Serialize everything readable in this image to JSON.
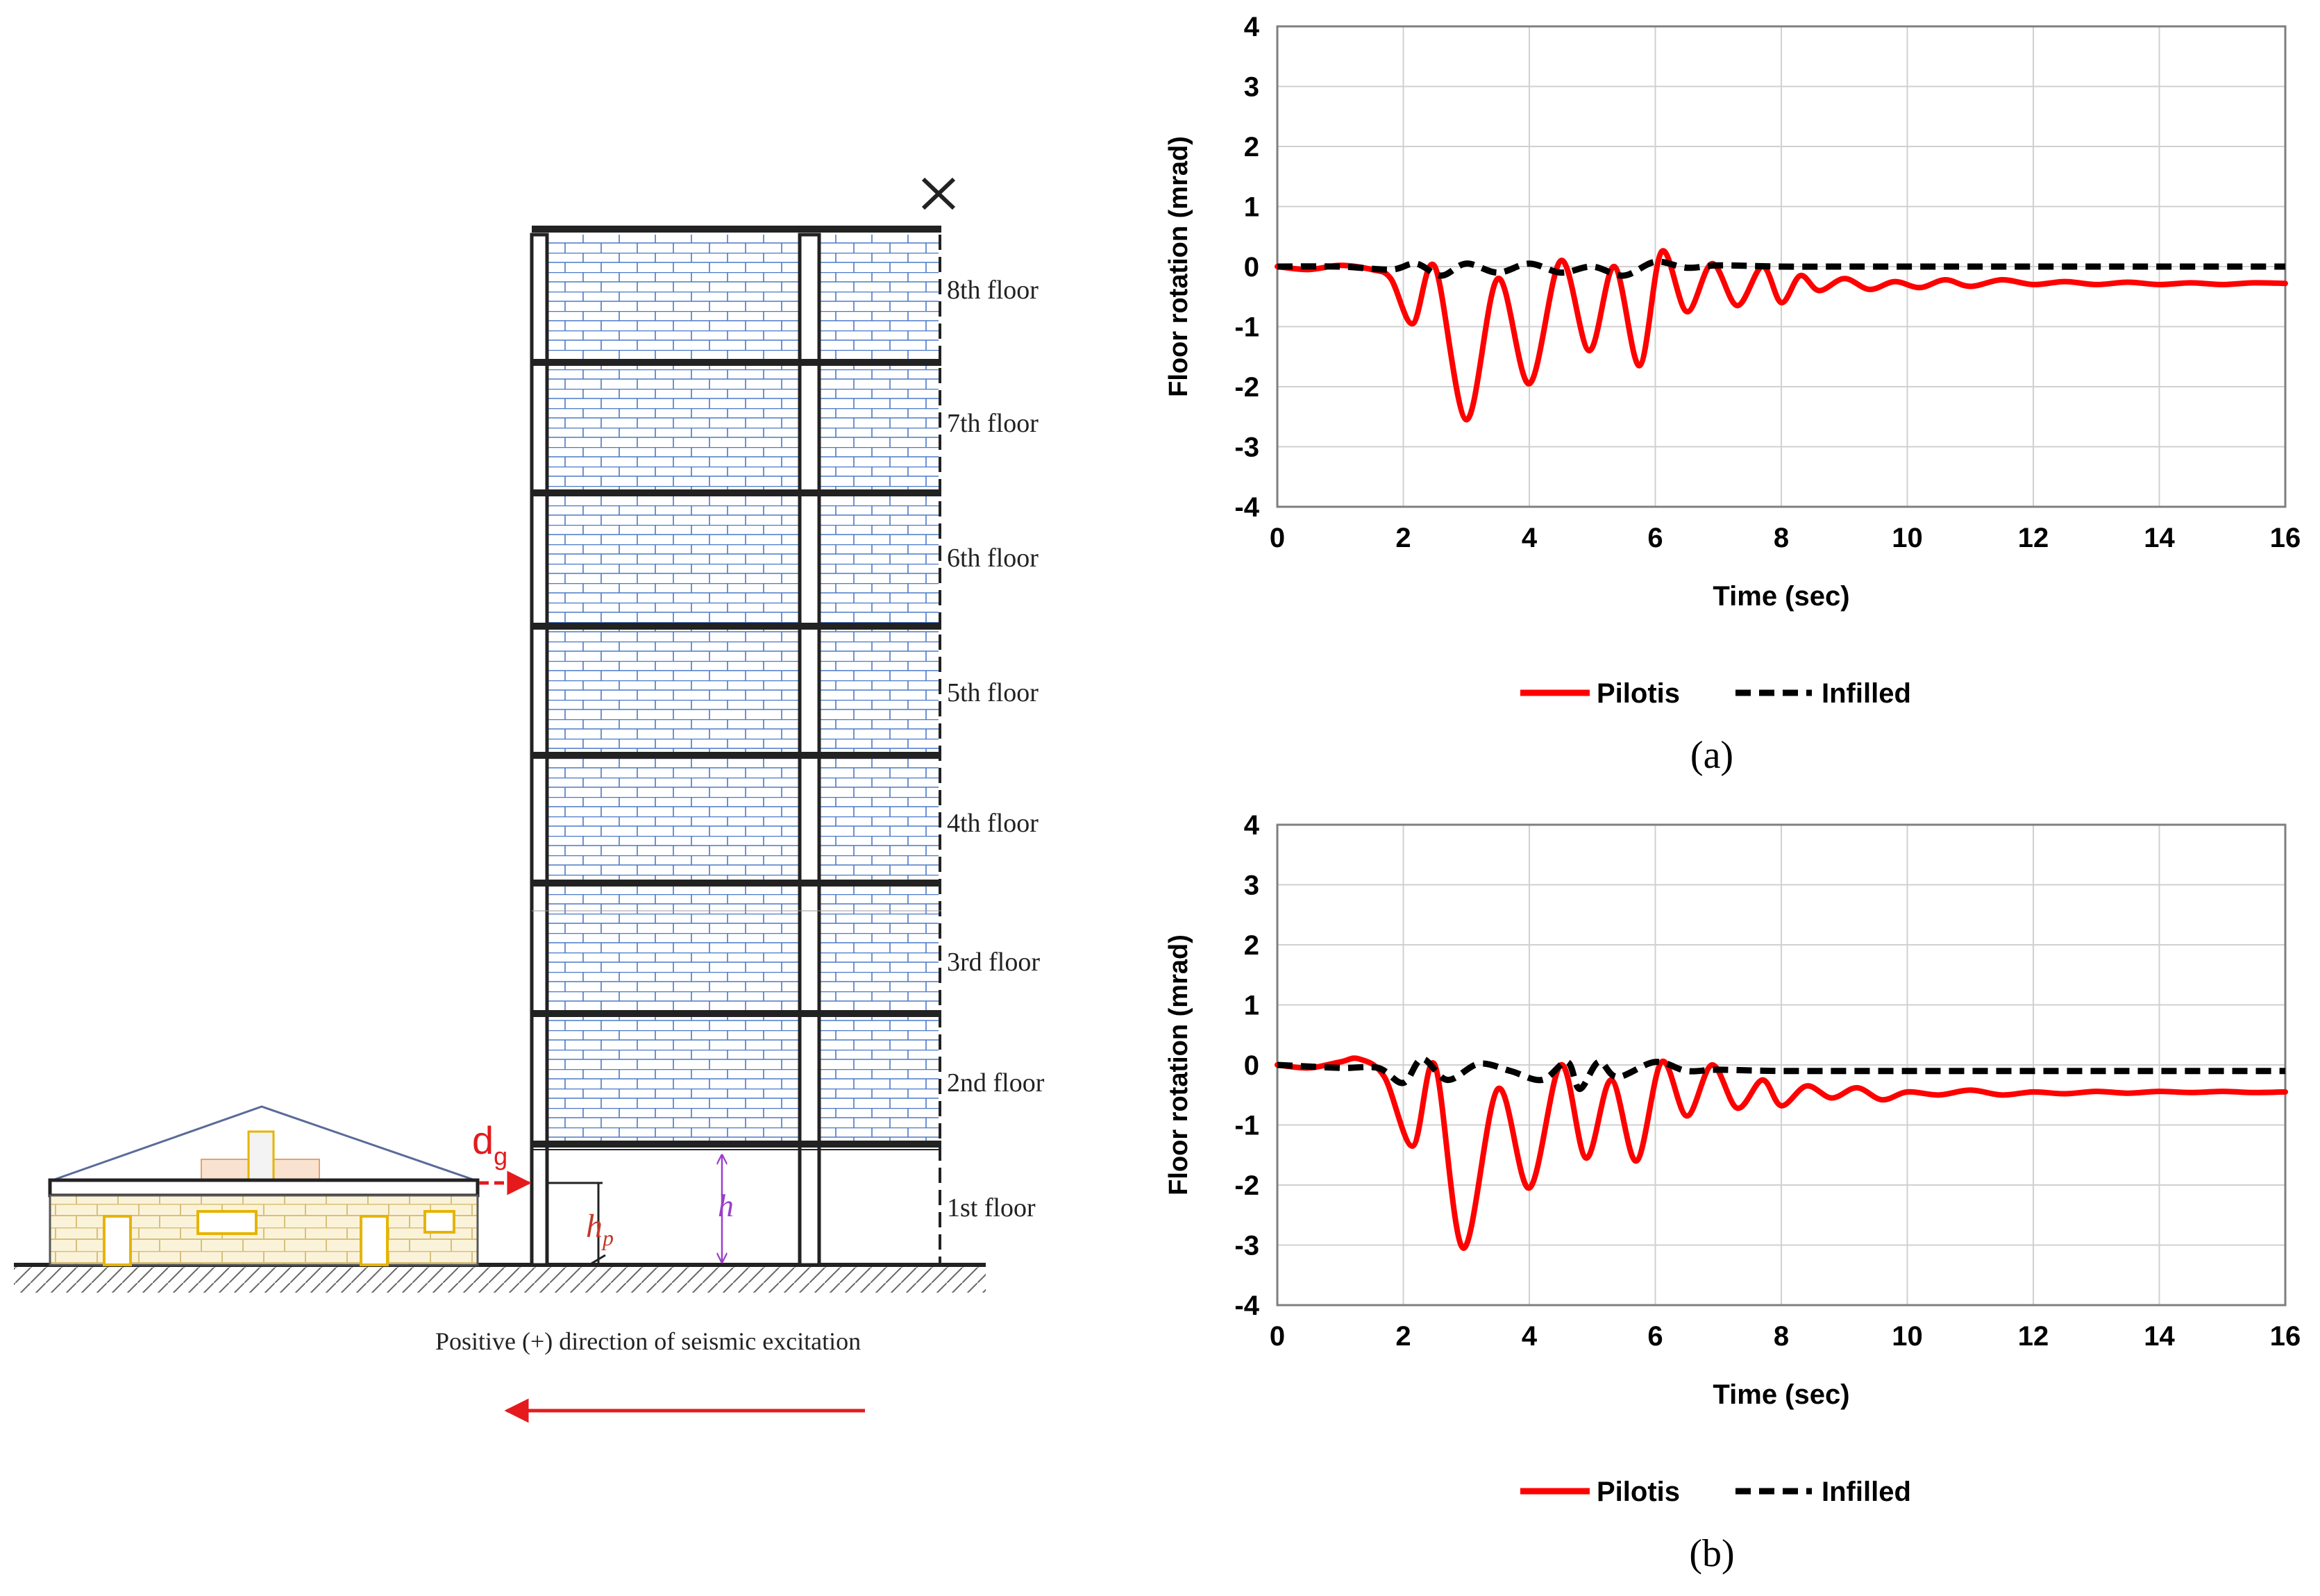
{
  "diagram": {
    "floor_labels": [
      "8th  floor",
      "7th  floor",
      "6th  floor",
      "5th  floor",
      "4th  floor",
      "3rd  floor",
      "2nd  floor",
      "1st  floor"
    ],
    "gap_label_main": "d",
    "gap_label_sub": "g",
    "pilotis_height_label_main": "h",
    "pilotis_height_label_sub": "p",
    "storey_height_label": "h",
    "direction_caption": "Positive (+) direction of seismic excitation",
    "colors": {
      "accent_red": "#e41a1c",
      "brick_blue": "#4a78c8",
      "house_yellow": "#e6b400",
      "dimension_purple": "#9b3fc8"
    }
  },
  "chart_data": [
    {
      "id": "a",
      "type": "line",
      "caption": "(a)",
      "xlabel": "Time (sec)",
      "ylabel": "Floor rotation (mrad)",
      "xlim": [
        0,
        16
      ],
      "ylim": [
        -4,
        4
      ],
      "xticks": [
        0,
        2,
        4,
        6,
        8,
        10,
        12,
        14,
        16
      ],
      "yticks": [
        4,
        3,
        2,
        1,
        0,
        -1,
        -2,
        -3,
        -4
      ],
      "grid": true,
      "legend_position": "bottom-center",
      "series": [
        {
          "name": "Pilotis",
          "color": "#ff0000",
          "style": "solid",
          "x": [
            0,
            0.5,
            1.0,
            1.5,
            1.8,
            2.15,
            2.5,
            3.0,
            3.5,
            4.0,
            4.5,
            4.95,
            5.35,
            5.75,
            6.1,
            6.5,
            6.9,
            7.3,
            7.7,
            8.0,
            8.3,
            8.6,
            9.0,
            9.4,
            9.8,
            10.2,
            10.6,
            11.0,
            11.5,
            12.0,
            12.5,
            13.0,
            13.5,
            14.0,
            14.5,
            15.0,
            15.5,
            16.0
          ],
          "y": [
            0,
            -0.05,
            0.02,
            -0.05,
            -0.2,
            -0.95,
            0.0,
            -2.55,
            -0.2,
            -1.95,
            0.1,
            -1.4,
            0.0,
            -1.65,
            0.25,
            -0.75,
            0.05,
            -0.65,
            0.0,
            -0.6,
            -0.15,
            -0.4,
            -0.2,
            -0.38,
            -0.25,
            -0.35,
            -0.22,
            -0.33,
            -0.22,
            -0.3,
            -0.25,
            -0.3,
            -0.26,
            -0.3,
            -0.27,
            -0.3,
            -0.27,
            -0.28
          ]
        },
        {
          "name": "Infilled",
          "color": "#000000",
          "style": "dashed",
          "x": [
            0,
            1.0,
            1.8,
            2.2,
            2.6,
            3.0,
            3.5,
            4.0,
            4.5,
            5.0,
            5.5,
            6.0,
            6.5,
            7.0,
            8.0,
            9.0,
            10.0,
            12.0,
            14.0,
            16.0
          ],
          "y": [
            0,
            0,
            -0.05,
            0.05,
            -0.15,
            0.05,
            -0.1,
            0.05,
            -0.1,
            0.0,
            -0.15,
            0.08,
            -0.02,
            0.02,
            0.0,
            0.0,
            0.0,
            0.0,
            0.0,
            0.0
          ]
        }
      ]
    },
    {
      "id": "b",
      "type": "line",
      "caption": "(b)",
      "xlabel": "Time (sec)",
      "ylabel": "Floor rotation (mrad)",
      "xlim": [
        0,
        16
      ],
      "ylim": [
        -4,
        4
      ],
      "xticks": [
        0,
        2,
        4,
        6,
        8,
        10,
        12,
        14,
        16
      ],
      "yticks": [
        4,
        3,
        2,
        1,
        0,
        -1,
        -2,
        -3,
        -4
      ],
      "grid": true,
      "legend_position": "bottom-center",
      "series": [
        {
          "name": "Pilotis",
          "color": "#ff0000",
          "style": "solid",
          "x": [
            0,
            0.5,
            1.0,
            1.3,
            1.7,
            2.15,
            2.5,
            2.95,
            3.5,
            4.0,
            4.5,
            4.9,
            5.3,
            5.7,
            6.1,
            6.5,
            6.9,
            7.3,
            7.7,
            8.0,
            8.4,
            8.8,
            9.2,
            9.6,
            10.0,
            10.5,
            11.0,
            11.5,
            12.0,
            12.5,
            13.0,
            13.5,
            14.0,
            14.5,
            15.0,
            15.5,
            16.0
          ],
          "y": [
            0,
            -0.05,
            0.05,
            0.1,
            -0.2,
            -1.35,
            0.0,
            -3.05,
            -0.4,
            -2.05,
            0.0,
            -1.55,
            -0.25,
            -1.6,
            0.05,
            -0.85,
            0.0,
            -0.72,
            -0.25,
            -0.68,
            -0.35,
            -0.55,
            -0.38,
            -0.58,
            -0.45,
            -0.5,
            -0.42,
            -0.5,
            -0.45,
            -0.48,
            -0.44,
            -0.47,
            -0.44,
            -0.46,
            -0.44,
            -0.46,
            -0.45
          ]
        },
        {
          "name": "Infilled",
          "color": "#000000",
          "style": "dashed",
          "x": [
            0,
            1.0,
            1.6,
            2.0,
            2.3,
            2.7,
            3.2,
            3.7,
            4.2,
            4.6,
            4.8,
            5.1,
            5.4,
            6.0,
            6.5,
            7.0,
            8.0,
            10.0,
            12.0,
            14.0,
            16.0
          ],
          "y": [
            0,
            -0.05,
            -0.05,
            -0.3,
            0.1,
            -0.25,
            0.02,
            -0.1,
            -0.25,
            0.05,
            -0.4,
            0.05,
            -0.2,
            0.05,
            -0.1,
            -0.08,
            -0.1,
            -0.1,
            -0.1,
            -0.1,
            -0.1
          ]
        }
      ]
    }
  ]
}
